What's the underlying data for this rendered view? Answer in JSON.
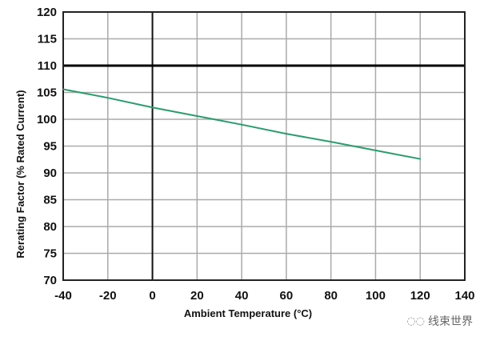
{
  "chart_data": {
    "type": "line",
    "title": "",
    "xlabel": "Ambient Temperature (°C)",
    "ylabel": "Rerating Factor (% Rated Current)",
    "xlim": [
      -40,
      140
    ],
    "ylim": [
      70,
      120
    ],
    "xticks": [
      -40,
      -20,
      0,
      20,
      40,
      60,
      80,
      100,
      120,
      140
    ],
    "yticks": [
      70,
      75,
      80,
      85,
      90,
      95,
      100,
      105,
      110,
      115,
      120
    ],
    "xtick_labels": [
      "-40",
      "-20",
      "0",
      "20",
      "40",
      "60",
      "80",
      "100",
      "120",
      "140"
    ],
    "ytick_labels": [
      "70",
      "75",
      "80",
      "85",
      "90",
      "95",
      "100",
      "105",
      "110",
      "115",
      "120"
    ],
    "grid": true,
    "reference_lines": {
      "x": 0,
      "y": 110
    },
    "series": [
      {
        "color": "#2a9d6e",
        "x": [
          -40,
          -20,
          0,
          20,
          40,
          60,
          80,
          100,
          120
        ],
        "y": [
          105.6,
          104.0,
          102.2,
          100.6,
          99.0,
          97.3,
          95.8,
          94.2,
          92.6
        ]
      }
    ]
  },
  "watermark": "线束世界"
}
